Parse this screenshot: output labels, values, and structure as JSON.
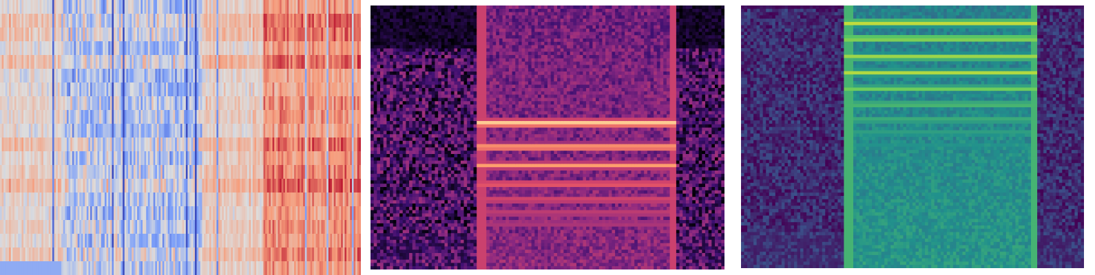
{
  "chart_data": [
    {
      "type": "heatmap",
      "title": "",
      "xlabel": "",
      "ylabel": "",
      "colormap": "coolwarm",
      "grid": false,
      "legend": "none",
      "rows": 20,
      "cols": 200,
      "column_blocks": [
        {
          "from": 0.0,
          "to": 0.17,
          "mean": 0.15,
          "spread": 0.35
        },
        {
          "from": 0.17,
          "to": 0.56,
          "mean": -0.15,
          "spread": 0.75
        },
        {
          "from": 0.56,
          "to": 0.73,
          "mean": 0.2,
          "spread": 0.3
        },
        {
          "from": 0.73,
          "to": 1.0,
          "mean": 0.55,
          "spread": 0.35
        }
      ]
    },
    {
      "type": "heatmap",
      "title": "",
      "xlabel": "",
      "ylabel": "",
      "colormap": "magma",
      "grid": false,
      "legend": "none",
      "background": "#05030f",
      "harmonics": [
        0.18,
        0.22,
        0.27,
        0.33,
        0.4,
        0.47,
        0.56
      ],
      "harmonic_intensity": [
        0.55,
        0.6,
        0.65,
        0.72,
        0.8,
        0.88,
        0.96
      ]
    },
    {
      "type": "heatmap",
      "title": "",
      "xlabel": "",
      "ylabel": "",
      "colormap": "viridis",
      "grid": false,
      "legend": "none",
      "background": "#44065a",
      "harmonics": [
        0.06,
        0.12,
        0.19,
        0.25,
        0.31,
        0.37,
        0.43,
        0.48,
        0.53,
        0.58,
        0.63
      ],
      "harmonic_intensity": [
        0.98,
        0.95,
        0.92,
        0.88,
        0.84,
        0.78,
        0.72,
        0.66,
        0.6,
        0.55,
        0.5
      ]
    }
  ]
}
